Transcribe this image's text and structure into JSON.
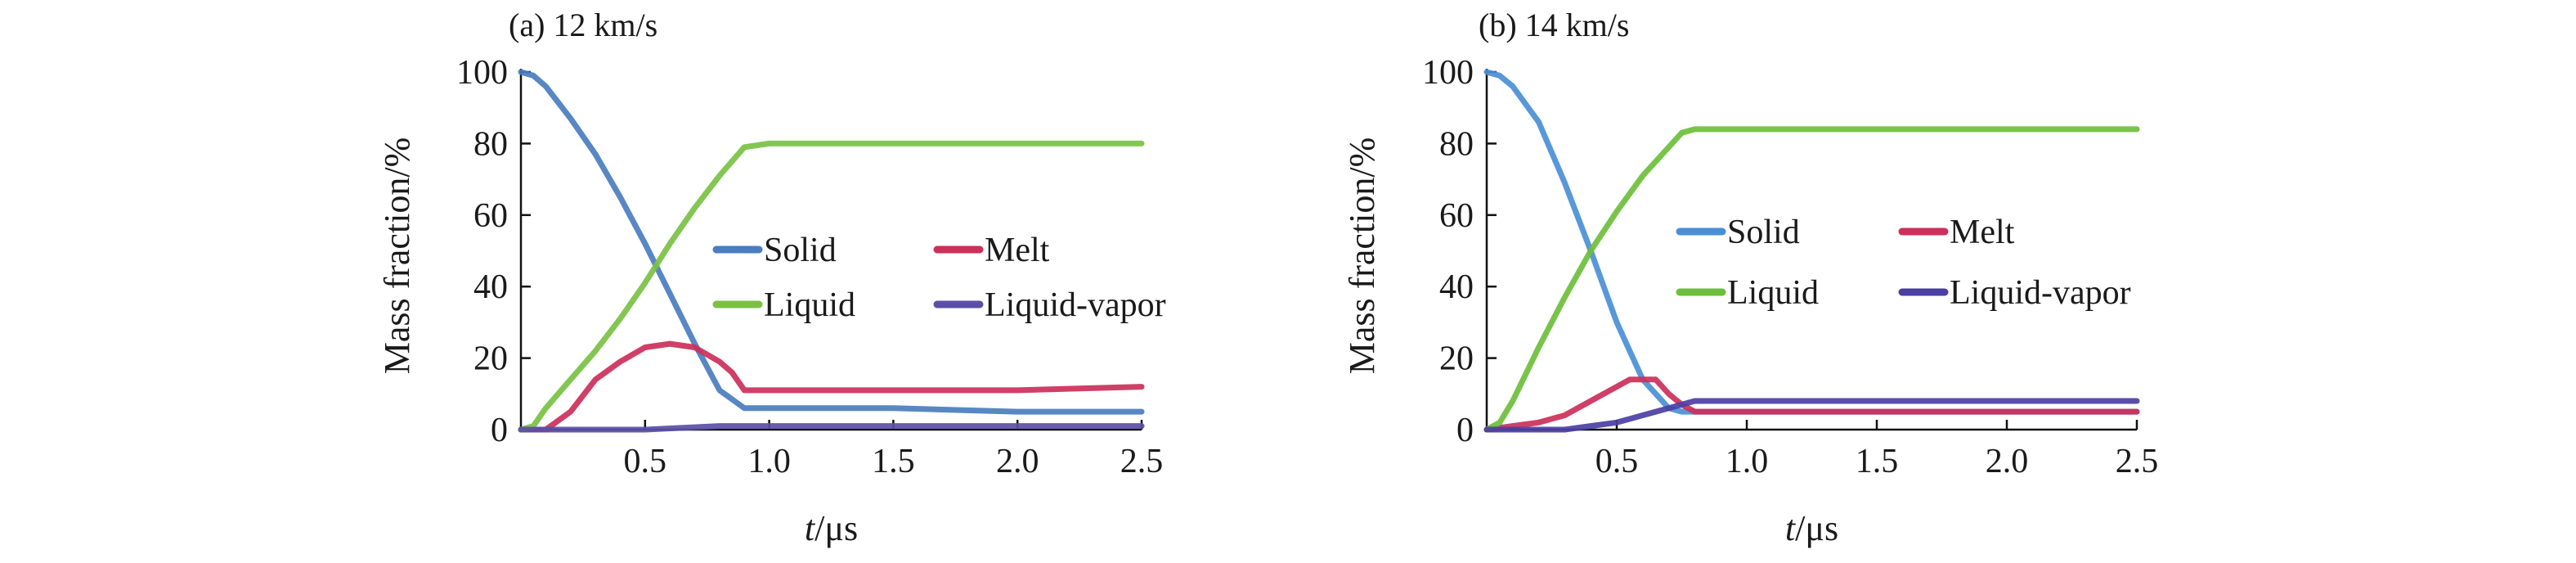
{
  "figure": {
    "panels": [
      {
        "id": "a",
        "title": "(a) 12 km/s"
      },
      {
        "id": "b",
        "title": "(b) 14 km/s"
      }
    ]
  },
  "chart_data": [
    {
      "type": "line",
      "title": "(a) 12 km/s",
      "xlabel": "t/μs",
      "ylabel": "Mass fraction/%",
      "xlim": [
        0,
        2.5
      ],
      "ylim": [
        0,
        100
      ],
      "xticks": [
        0.5,
        1.0,
        1.5,
        2.0,
        2.5
      ],
      "xtick_labels": [
        "0.5",
        "1.0",
        "1.5",
        "2.0",
        "2.5"
      ],
      "yticks": [
        0,
        20,
        40,
        60,
        80,
        100
      ],
      "ytick_labels": [
        "0",
        "20",
        "40",
        "60",
        "80",
        "100"
      ],
      "grid": false,
      "legend": {
        "placement": "center-right",
        "columns": 2
      },
      "series": [
        {
          "name": "Solid",
          "color": "#4a7dbf",
          "x": [
            0,
            0.05,
            0.1,
            0.2,
            0.3,
            0.4,
            0.5,
            0.6,
            0.7,
            0.8,
            0.9,
            1.0,
            1.5,
            2.0,
            2.5
          ],
          "y": [
            100,
            99,
            96,
            87,
            77,
            65,
            52,
            38,
            24,
            11,
            6,
            6,
            6,
            5,
            5
          ]
        },
        {
          "name": "Melt",
          "color": "#cc2f5a",
          "x": [
            0,
            0.1,
            0.2,
            0.3,
            0.4,
            0.5,
            0.6,
            0.7,
            0.8,
            0.85,
            0.9,
            0.95,
            1.0,
            1.5,
            2.0,
            2.5
          ],
          "y": [
            0,
            0,
            5,
            14,
            19,
            23,
            24,
            23,
            19,
            16,
            11,
            11,
            11,
            11,
            11,
            12
          ]
        },
        {
          "name": "Liquid",
          "color": "#7ac143",
          "x": [
            0,
            0.05,
            0.1,
            0.2,
            0.3,
            0.4,
            0.5,
            0.6,
            0.7,
            0.8,
            0.9,
            1.0,
            1.5,
            2.0,
            2.5
          ],
          "y": [
            0,
            1,
            6,
            14,
            22,
            31,
            41,
            52,
            62,
            71,
            79,
            80,
            80,
            80,
            80
          ]
        },
        {
          "name": "Liquid-vapor",
          "color": "#5b4ea6",
          "x": [
            0,
            0.5,
            0.8,
            1.0,
            1.5,
            2.0,
            2.5
          ],
          "y": [
            0,
            0,
            1,
            1,
            1,
            1,
            1
          ]
        }
      ]
    },
    {
      "type": "line",
      "title": "(b) 14 km/s",
      "xlabel": "t/μs",
      "ylabel": "Mass fraction/%",
      "xlim": [
        0,
        2.5
      ],
      "ylim": [
        0,
        100
      ],
      "xticks": [
        0.5,
        1.0,
        1.5,
        2.0,
        2.5
      ],
      "xtick_labels": [
        "0.5",
        "1.0",
        "1.5",
        "2.0",
        "2.5"
      ],
      "yticks": [
        0,
        20,
        40,
        60,
        80,
        100
      ],
      "ytick_labels": [
        "0",
        "20",
        "40",
        "60",
        "80",
        "100"
      ],
      "grid": false,
      "legend": {
        "placement": "center-right",
        "columns": 2
      },
      "series": [
        {
          "name": "Solid",
          "color": "#4a8fd6",
          "x": [
            0,
            0.05,
            0.1,
            0.2,
            0.3,
            0.4,
            0.5,
            0.6,
            0.7,
            0.75,
            0.8,
            1.0,
            1.5,
            2.0,
            2.5
          ],
          "y": [
            100,
            99,
            96,
            86,
            69,
            50,
            30,
            14,
            6,
            5,
            5,
            5,
            5,
            5,
            5
          ]
        },
        {
          "name": "Melt",
          "color": "#cc2f5a",
          "x": [
            0,
            0.1,
            0.2,
            0.3,
            0.4,
            0.5,
            0.55,
            0.6,
            0.65,
            0.7,
            0.75,
            0.8,
            1.0,
            1.5,
            2.0,
            2.5
          ],
          "y": [
            0,
            1,
            2,
            4,
            8,
            12,
            14,
            14,
            14,
            10,
            7,
            5,
            5,
            5,
            5,
            5
          ]
        },
        {
          "name": "Liquid",
          "color": "#6cbf3b",
          "x": [
            0,
            0.05,
            0.1,
            0.2,
            0.3,
            0.4,
            0.5,
            0.6,
            0.7,
            0.75,
            0.8,
            1.0,
            1.5,
            2.0,
            2.5
          ],
          "y": [
            0,
            2,
            8,
            23,
            37,
            50,
            61,
            71,
            79,
            83,
            84,
            84,
            84,
            84,
            84
          ]
        },
        {
          "name": "Liquid-vapor",
          "color": "#4b3fa3",
          "x": [
            0,
            0.3,
            0.4,
            0.5,
            0.6,
            0.7,
            0.8,
            1.0,
            1.5,
            2.0,
            2.5
          ],
          "y": [
            0,
            0,
            1,
            2,
            4,
            6,
            8,
            8,
            8,
            8,
            8
          ]
        }
      ]
    }
  ]
}
